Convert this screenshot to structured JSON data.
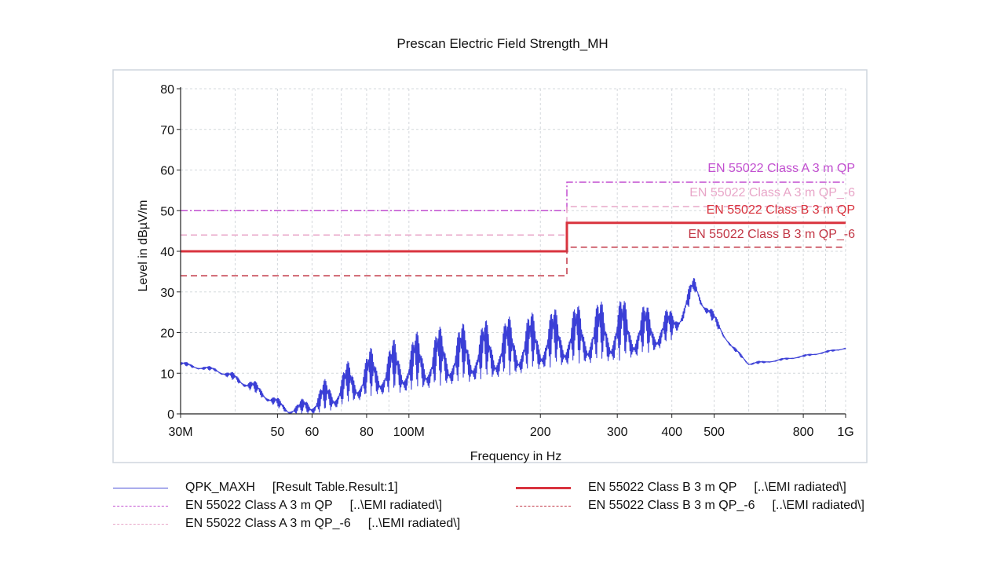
{
  "chart_data": {
    "type": "line",
    "title": "Prescan Electric Field Strength_MH",
    "xlabel": "Frequency in Hz",
    "ylabel": "Level in dBµV/m",
    "x_scale": "log",
    "xlim": [
      30000000,
      1000000000
    ],
    "ylim": [
      0,
      80
    ],
    "grid": true,
    "x_ticks": [
      {
        "value": 30000000,
        "label": "30M"
      },
      {
        "value": 50000000,
        "label": "50"
      },
      {
        "value": 60000000,
        "label": "60"
      },
      {
        "value": 80000000,
        "label": "80"
      },
      {
        "value": 100000000,
        "label": "100M"
      },
      {
        "value": 200000000,
        "label": "200"
      },
      {
        "value": 300000000,
        "label": "300"
      },
      {
        "value": 400000000,
        "label": "400"
      },
      {
        "value": 500000000,
        "label": "500"
      },
      {
        "value": 800000000,
        "label": "800"
      },
      {
        "value": 1000000000,
        "label": "1G"
      }
    ],
    "y_ticks": [
      0,
      10,
      20,
      30,
      40,
      50,
      60,
      70,
      80
    ],
    "limits": [
      {
        "name": "EN 55022 Class A 3 m QP",
        "color": "#c24fd0",
        "style": "dashdot",
        "segments": [
          [
            30000000,
            230000000,
            50
          ],
          [
            230000000,
            1000000000,
            57
          ]
        ]
      },
      {
        "name": "EN 55022 Class A 3 m QP_-6",
        "color": "#e8a6c8",
        "style": "dashed",
        "segments": [
          [
            30000000,
            230000000,
            44
          ],
          [
            230000000,
            1000000000,
            51
          ]
        ]
      },
      {
        "name": "EN 55022 Class B 3 m QP",
        "color": "#d9343f",
        "style": "solid",
        "segments": [
          [
            30000000,
            230000000,
            40
          ],
          [
            230000000,
            1000000000,
            47
          ]
        ]
      },
      {
        "name": "EN 55022 Class B 3 m QP_-6",
        "color": "#c23645",
        "style": "dashed",
        "segments": [
          [
            30000000,
            230000000,
            34
          ],
          [
            230000000,
            1000000000,
            41
          ]
        ]
      }
    ],
    "limit_labels": [
      {
        "text": "EN 55022 Class A 3 m QP",
        "color": "#c24fd0",
        "y": 59.5
      },
      {
        "text": "EN 55022 Class A 3 m QP_-6",
        "color": "#e8a6c8",
        "y": 53.5
      },
      {
        "text": "EN 55022 Class B 3 m QP",
        "color": "#d9343f",
        "y": 49.3
      },
      {
        "text": "EN 55022 Class B 3 m QP_-6",
        "color": "#c23645",
        "y": 43.3
      }
    ],
    "series": [
      {
        "name": "QPK_MAXH",
        "color": "#3b3fd6",
        "baseline_x": [
          30,
          33,
          36,
          40,
          43,
          46,
          50,
          53,
          56,
          60,
          65,
          70,
          75,
          80,
          90,
          100,
          120,
          140,
          160,
          180,
          200,
          230,
          260,
          300,
          330,
          360,
          400,
          430,
          450,
          470,
          500,
          550,
          600,
          650,
          700,
          800,
          900,
          1000
        ],
        "baseline_y": [
          12,
          11,
          10.5,
          8,
          6,
          4,
          1.5,
          0,
          0,
          0,
          0.5,
          2,
          3,
          4,
          5,
          5.5,
          7,
          8,
          9,
          10,
          11,
          12,
          12.5,
          13,
          14,
          15,
          18,
          24,
          30,
          26,
          22,
          16,
          12,
          12.5,
          13,
          14,
          15,
          16
        ],
        "peak_y": [
          13,
          12,
          11.5,
          10,
          9,
          7,
          4,
          2,
          3,
          6,
          9,
          12,
          14,
          16,
          18,
          20,
          22,
          23,
          24,
          25,
          26,
          27,
          28,
          29.5,
          28,
          27,
          26,
          30,
          34,
          30,
          25,
          17,
          13,
          13,
          13.5,
          14.5,
          15.5,
          16.5
        ]
      }
    ],
    "legend": [
      {
        "name": "QPK_MAXH",
        "source": "[Result Table.Result:1]",
        "color": "#4a4fd8",
        "style": "solid"
      },
      {
        "name": "EN 55022 Class A 3 m QP",
        "source": "[..\\EMI radiated\\]",
        "color": "#c24fd0",
        "style": "dashdot"
      },
      {
        "name": "EN 55022 Class A 3 m QP_-6",
        "source": "[..\\EMI radiated\\]",
        "color": "#e8a6c8",
        "style": "dashed"
      },
      {
        "name": "EN 55022 Class B 3 m QP",
        "source": "[..\\EMI radiated\\]",
        "color": "#d9343f",
        "style": "solid"
      },
      {
        "name": "EN 55022 Class B 3 m QP_-6",
        "source": "[..\\EMI radiated\\]",
        "color": "#c23645",
        "style": "dashed"
      }
    ]
  }
}
